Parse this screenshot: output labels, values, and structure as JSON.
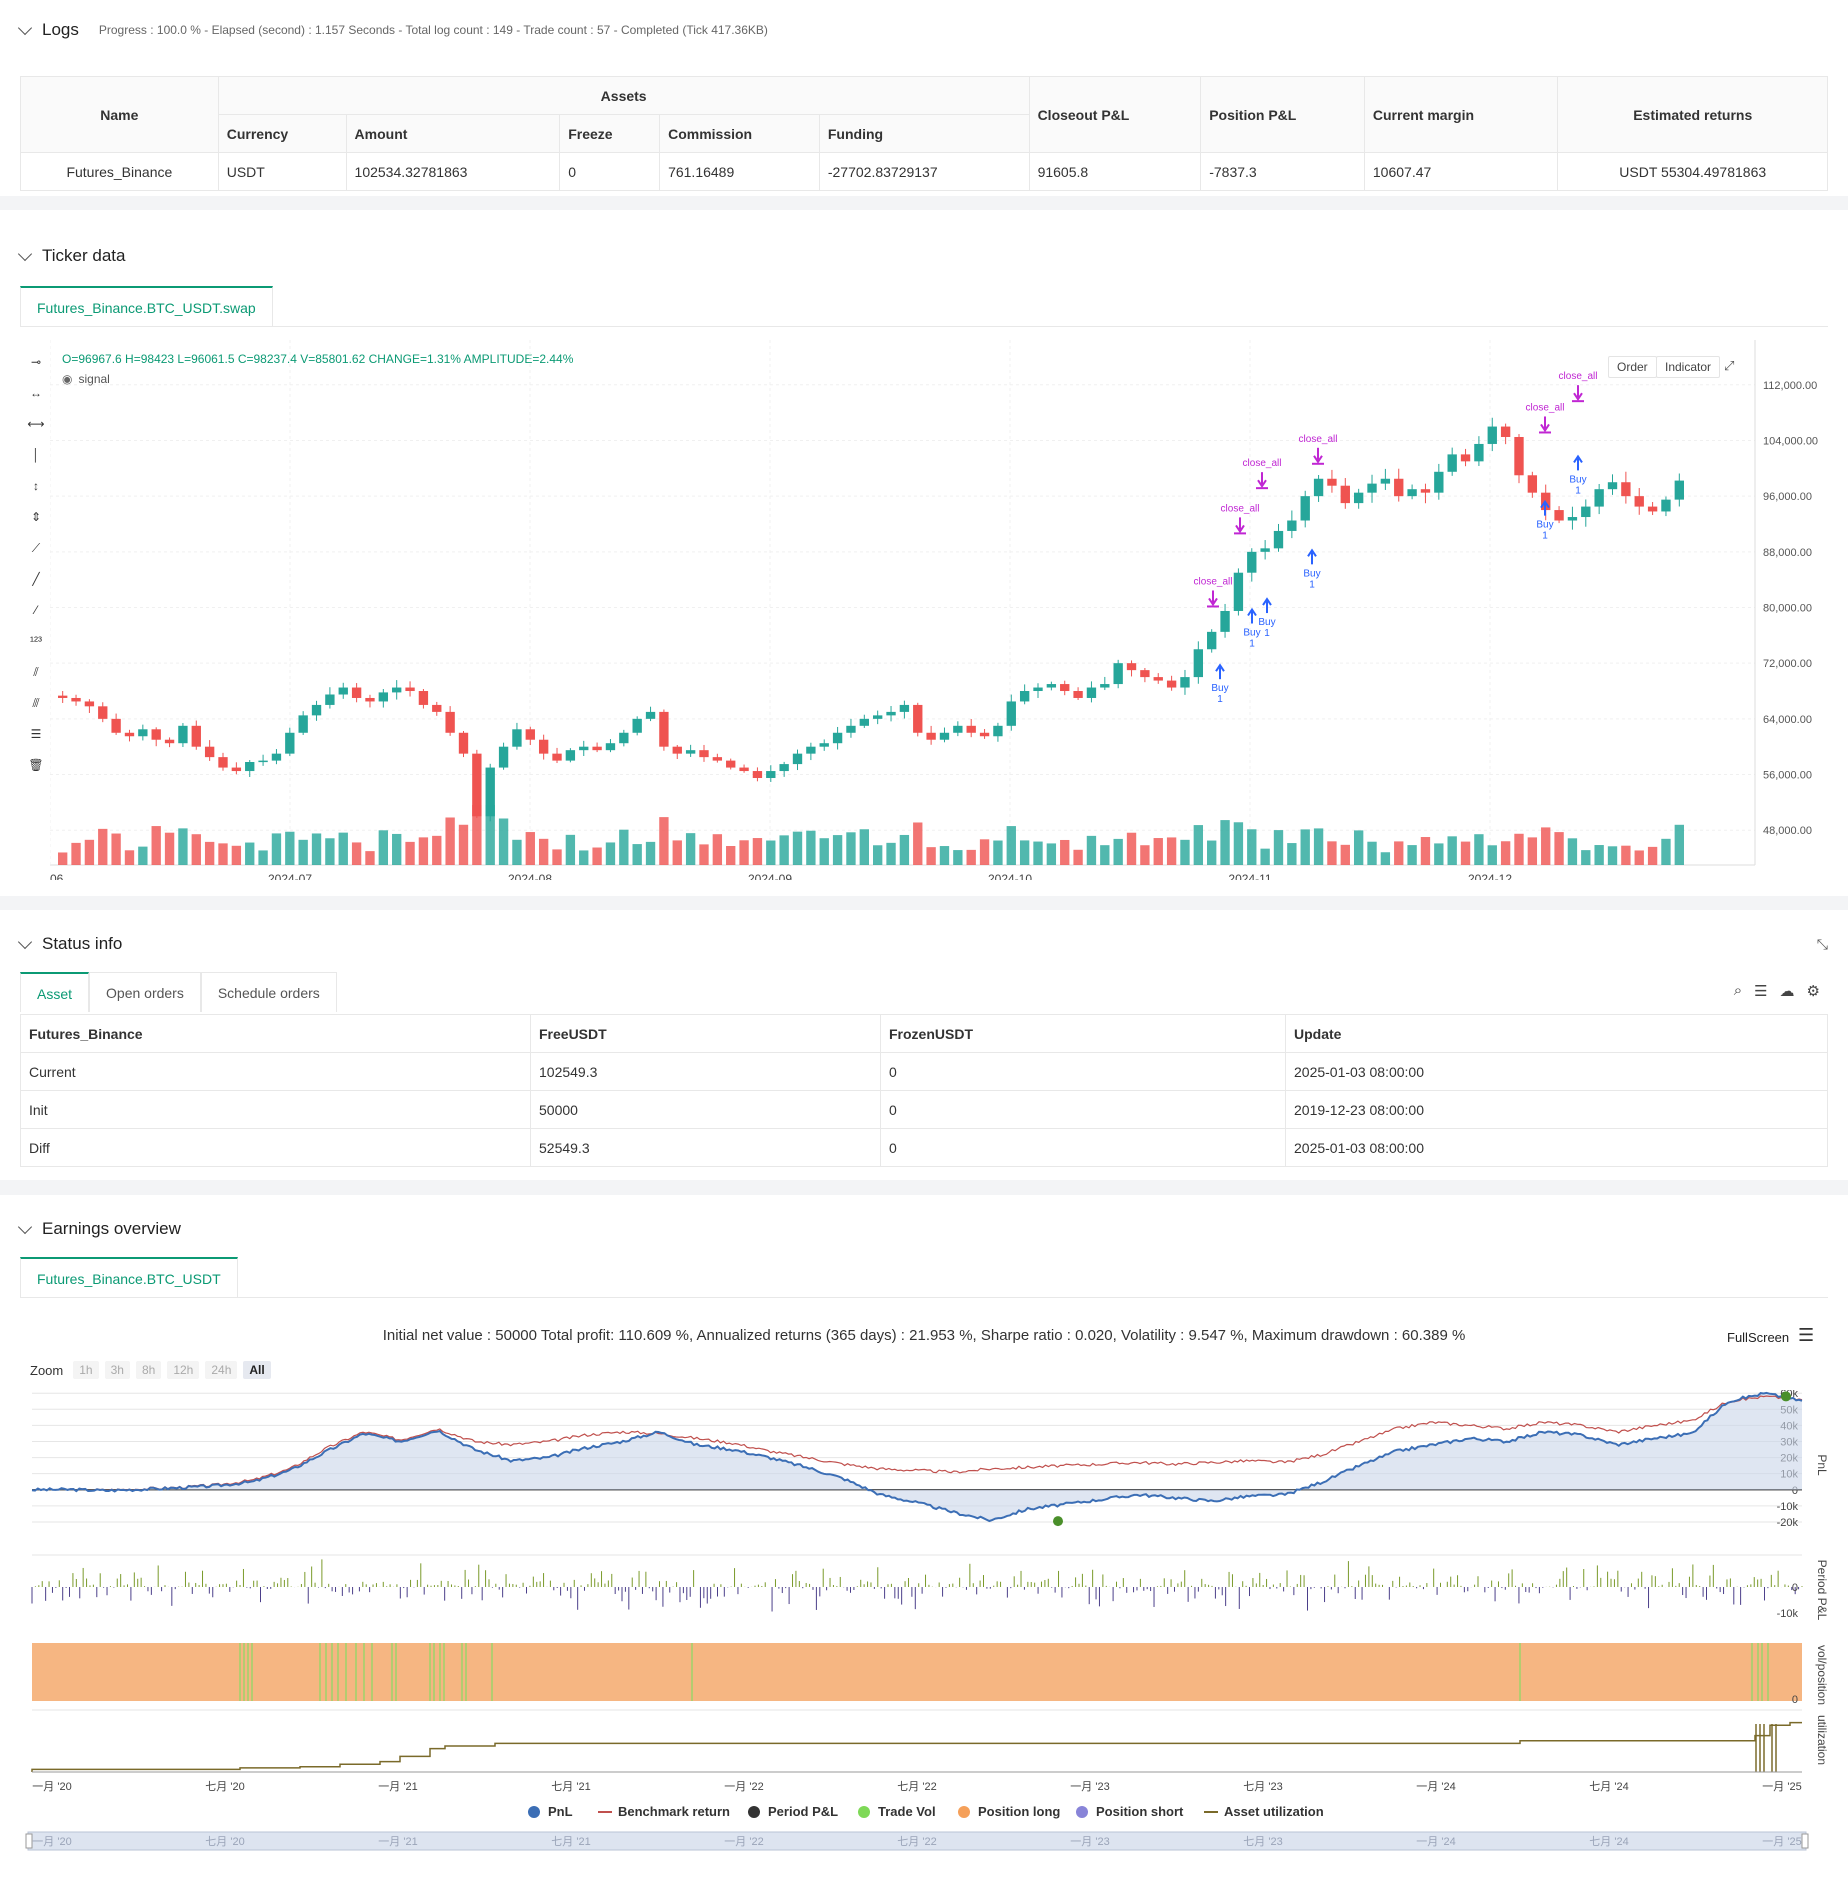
{
  "logs": {
    "title": "Logs",
    "summary": "Progress : 100.0 % - Elapsed (second) : 1.157  Seconds - Total log count : 149 - Trade count : 57 - Completed (Tick 417.36KB)",
    "headers": {
      "name": "Name",
      "assets": "Assets",
      "currency": "Currency",
      "amount": "Amount",
      "freeze": "Freeze",
      "commission": "Commission",
      "funding": "Funding",
      "closeout": "Closeout P&L",
      "position": "Position P&L",
      "margin": "Current margin",
      "returns": "Estimated returns"
    },
    "row": {
      "name": "Futures_Binance",
      "currency": "USDT",
      "amount": "102534.32781863",
      "freeze": "0",
      "commission": "761.16489",
      "funding": "-27702.83729137",
      "closeout": "91605.8",
      "position": "-7837.3",
      "margin": "10607.47",
      "returns": "USDT 55304.49781863"
    }
  },
  "ticker": {
    "title": "Ticker data",
    "tab": "Futures_Binance.BTC_USDT.swap",
    "ohlc": "O=96967.6 H=98423 L=96061.5 C=98237.4 V=85801.62 CHANGE=1.31% AMPLITUDE=2.44%",
    "signal_label": "signal",
    "order_btn": "Order",
    "indicator_btn": "Indicator",
    "colors": {
      "up": "#26a69a",
      "down": "#ef5350",
      "buy": "#2962ff",
      "close": "#c026d3"
    }
  },
  "chart_data": [
    {
      "type": "candlestick",
      "x_ticks": [
        "06",
        "2024-07",
        "2024-08",
        "2024-09",
        "2024-10",
        "2024-11",
        "2024-12"
      ],
      "y_ticks": [
        "112,000.00",
        "104,000.00",
        "96,000.00",
        "88,000.00",
        "80,000.00",
        "72,000.00",
        "64,000.00",
        "56,000.00",
        "48,000.00"
      ],
      "ylim": [
        43000,
        117000
      ],
      "close_path": [
        67000,
        66500,
        65800,
        64000,
        62000,
        61500,
        62500,
        61000,
        60500,
        63000,
        60000,
        58500,
        57000,
        56500,
        57800,
        58000,
        59000,
        62000,
        64500,
        66000,
        67500,
        68500,
        67000,
        66500,
        67800,
        68500,
        68000,
        66000,
        65000,
        62000,
        59000,
        50000,
        57000,
        60000,
        62500,
        61000,
        59000,
        58000,
        59500,
        60000,
        59500,
        60500,
        62000,
        64000,
        65000,
        60000,
        59000,
        59500,
        58500,
        58000,
        57000,
        56500,
        55500,
        56500,
        57500,
        59000,
        60000,
        60500,
        62000,
        63000,
        64000,
        64500,
        65000,
        66000,
        62000,
        61000,
        62000,
        63000,
        62000,
        61500,
        63000,
        66500,
        68000,
        68500,
        69000,
        68000,
        67000,
        68500,
        69000,
        72000,
        71000,
        70000,
        69500,
        68500,
        70000,
        74000,
        76500,
        79500,
        85000,
        88000,
        88500,
        91000,
        92500,
        96000,
        98500,
        97500,
        95000,
        96500,
        97800,
        98500,
        96000,
        97000,
        96500,
        99500,
        102000,
        101000,
        103500,
        106000,
        104500,
        99000,
        96500,
        94000,
        92500,
        93000,
        94500,
        97000,
        98000,
        96000,
        94500,
        93800,
        95500,
        98237
      ],
      "annotations": {
        "buy": "Buy",
        "buy_qty": "1",
        "close": "close_all"
      }
    },
    {
      "type": "line",
      "title": "Initial net value : 50000 Total profit: 110.609 %, Annualized returns (365 days) : 21.953 %, Sharpe ratio : 0.020, Volatility : 9.547 %, Maximum drawdown : 60.389 %",
      "pnl_y_ticks": [
        "60k",
        "50k",
        "40k",
        "30k",
        "20k",
        "10k",
        "0",
        "-10k",
        "-20k"
      ],
      "period_y_ticks": [
        "0",
        "-10k"
      ],
      "vol_y_ticks": [
        "0"
      ],
      "x_ticks": [
        "一月 '20",
        "七月 '20",
        "一月 '21",
        "七月 '21",
        "一月 '22",
        "七月 '22",
        "一月 '23",
        "七月 '23",
        "一月 '24",
        "七月 '24",
        "一月 '25"
      ],
      "axis_labels": {
        "pnl": "PnL",
        "period": "Period P&L",
        "vol": "vol/position",
        "util": "utilization"
      },
      "pnl_series": [
        0,
        200,
        -500,
        300,
        1200,
        2500,
        5000,
        12000,
        24000,
        35000,
        30000,
        37000,
        25000,
        18000,
        20000,
        26000,
        30000,
        36000,
        28000,
        25000,
        20000,
        14000,
        7000,
        -3000,
        -8000,
        -14000,
        -19000,
        -12000,
        -9000,
        -6000,
        -3000,
        -5000,
        -7000,
        -4000,
        -3000,
        5000,
        15000,
        24000,
        28000,
        32000,
        30000,
        36000,
        34000,
        28000,
        32000,
        35000,
        55000,
        60000,
        55300
      ],
      "benchmark_series": [
        0,
        300,
        -200,
        600,
        1500,
        3000,
        6000,
        13000,
        26000,
        36000,
        31000,
        38000,
        30000,
        28000,
        30000,
        34000,
        36000,
        35000,
        32000,
        29000,
        24000,
        20000,
        16000,
        13000,
        12000,
        11000,
        13000,
        14000,
        15000,
        16000,
        17000,
        16000,
        17000,
        18000,
        17000,
        22000,
        30000,
        38000,
        42000,
        40000,
        38000,
        42000,
        40000,
        36000,
        40000,
        43000,
        55000,
        58000,
        56000
      ]
    }
  ],
  "status": {
    "title": "Status info",
    "tabs": [
      "Asset",
      "Open orders",
      "Schedule orders"
    ],
    "headers": [
      "Futures_Binance",
      "FreeUSDT",
      "FrozenUSDT",
      "Update"
    ],
    "rows": [
      [
        "Current",
        "102549.3",
        "0",
        "2025-01-03 08:00:00"
      ],
      [
        "Init",
        "50000",
        "0",
        "2019-12-23 08:00:00"
      ],
      [
        "Diff",
        "52549.3",
        "0",
        "2025-01-03 08:00:00"
      ]
    ]
  },
  "earnings": {
    "title": "Earnings overview",
    "tab": "Futures_Binance.BTC_USDT",
    "fullscreen": "FullScreen",
    "zoom_label": "Zoom",
    "zoom_options": [
      "1h",
      "3h",
      "8h",
      "12h",
      "24h",
      "All"
    ],
    "legend": [
      "PnL",
      "Benchmark return",
      "Period P&L",
      "Trade Vol",
      "Position long",
      "Position short",
      "Asset utilization"
    ],
    "legend_colors": [
      "#3b6eb5",
      "#c0504d",
      "#333333",
      "#7ed957",
      "#f5a05a",
      "#8884d8",
      "#7a6a2a"
    ]
  }
}
